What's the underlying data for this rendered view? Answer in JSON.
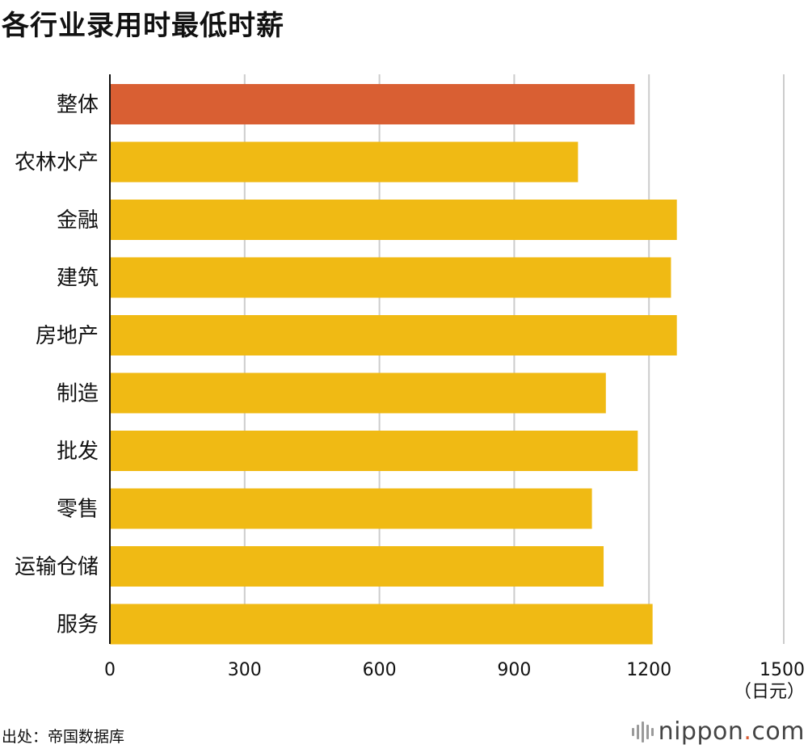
{
  "chart_data": {
    "type": "bar",
    "orientation": "horizontal",
    "title": "各行业录用时最低时薪",
    "categories": [
      "整体",
      "农林水产",
      "金融",
      "建筑",
      "房地产",
      "制造",
      "批发",
      "零售",
      "运输仓储",
      "服务"
    ],
    "values": [
      1168,
      1042,
      1262,
      1249,
      1262,
      1104,
      1175,
      1073,
      1099,
      1208
    ],
    "highlight_index": 0,
    "xlim": [
      0,
      1500
    ],
    "xticks": [
      "0",
      "300",
      "600",
      "900",
      "1200",
      "1500"
    ],
    "xlabel": "（日元）",
    "grid": "vertical",
    "colors": {
      "highlight": "#d95f33",
      "bar": "#f0ba14",
      "grid": "#cccccc",
      "axis": "#111111"
    }
  },
  "source": "出处：帝国数据库",
  "brand": {
    "name": "nippon",
    "dot": ".",
    "suffix": "com",
    "icon": "sound-wave-logo-icon"
  }
}
